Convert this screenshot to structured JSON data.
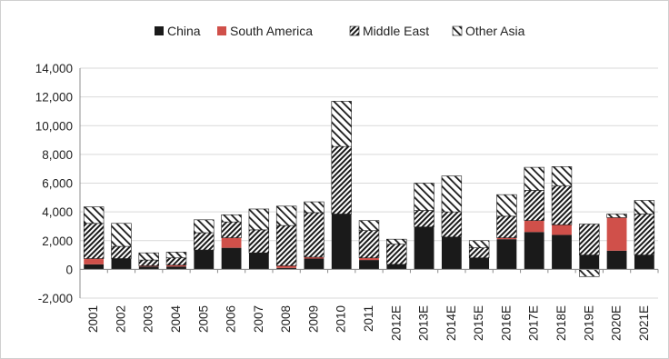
{
  "chart_data": {
    "type": "bar",
    "stacked": true,
    "title": "",
    "xlabel": "",
    "ylabel": "",
    "ylim": [
      -2000,
      14000
    ],
    "yticks": [
      -2000,
      0,
      2000,
      4000,
      6000,
      8000,
      10000,
      12000,
      14000
    ],
    "ytick_labels": [
      "-2,000",
      "0",
      "2,000",
      "4,000",
      "6,000",
      "8,000",
      "10,000",
      "12,000",
      "14,000"
    ],
    "grid": true,
    "legend_position": "top",
    "categories": [
      "2001",
      "2002",
      "2003",
      "2004",
      "2005",
      "2006",
      "2007",
      "2008",
      "2009",
      "2010",
      "2011",
      "2012E",
      "2013E",
      "2014E",
      "2015E",
      "2016E",
      "2017E",
      "2018E",
      "2019E",
      "2020E",
      "2021E"
    ],
    "series": [
      {
        "name": "China",
        "color": "#1a1a1a",
        "pattern": "solid",
        "values": [
          350,
          750,
          200,
          200,
          1350,
          1500,
          1150,
          100,
          750,
          3850,
          650,
          350,
          2950,
          2250,
          800,
          2100,
          2600,
          2400,
          1000,
          1300,
          1000
        ]
      },
      {
        "name": "South America",
        "color": "#d0504a",
        "pattern": "solid",
        "values": [
          400,
          0,
          50,
          100,
          0,
          700,
          0,
          150,
          100,
          0,
          150,
          0,
          0,
          0,
          0,
          100,
          800,
          700,
          0,
          2300,
          0
        ]
      },
      {
        "name": "Middle East",
        "color": "#1a1a1a",
        "pattern": "diagonal-dense",
        "values": [
          2450,
          850,
          400,
          500,
          1200,
          1100,
          1600,
          2800,
          3100,
          4700,
          1900,
          1400,
          1150,
          1750,
          700,
          1500,
          2100,
          2700,
          2150,
          0,
          2850
        ]
      },
      {
        "name": "Other Asia",
        "color": "#1a1a1a",
        "pattern": "diagonal-sparse",
        "values": [
          1150,
          1600,
          500,
          400,
          900,
          500,
          1450,
          1350,
          750,
          3150,
          700,
          350,
          1900,
          2500,
          500,
          1500,
          1600,
          1350,
          -500,
          250,
          950
        ]
      }
    ]
  }
}
